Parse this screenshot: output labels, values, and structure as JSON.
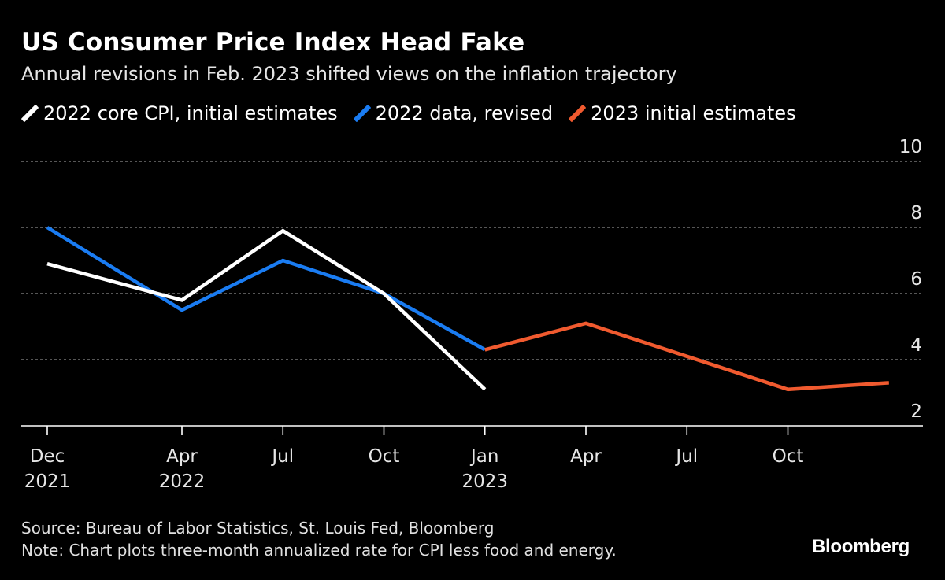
{
  "title": "US Consumer Price Index Head Fake",
  "subtitle": "Annual revisions in Feb. 2023 shifted views on the inflation trajectory",
  "legend": [
    {
      "label": "2022 core CPI, initial estimates",
      "color": "#ffffff"
    },
    {
      "label": "2022 data, revised",
      "color": "#1a7cf2"
    },
    {
      "label": "2023 initial estimates",
      "color": "#f05a2f"
    }
  ],
  "chart_data": {
    "type": "line",
    "title": "US Consumer Price Index Head Fake",
    "xlabel": "",
    "ylabel": "",
    "ylim": [
      2,
      10
    ],
    "yticks": [
      10,
      8,
      6,
      4,
      2
    ],
    "grid": true,
    "x_ticks": [
      {
        "t": 0,
        "line1": "Dec",
        "line2": "2021"
      },
      {
        "t": 4,
        "line1": "Apr",
        "line2": "2022"
      },
      {
        "t": 7,
        "line1": "Jul",
        "line2": ""
      },
      {
        "t": 10,
        "line1": "Oct",
        "line2": ""
      },
      {
        "t": 13,
        "line1": "Jan",
        "line2": "2023"
      },
      {
        "t": 16,
        "line1": "Apr",
        "line2": ""
      },
      {
        "t": 19,
        "line1": "Jul",
        "line2": ""
      },
      {
        "t": 22,
        "line1": "Oct",
        "line2": ""
      }
    ],
    "x_units": "months since Dec 2021",
    "series": [
      {
        "name": "2022 core CPI, initial estimates",
        "color": "#ffffff",
        "points": [
          [
            0,
            6.9
          ],
          [
            4,
            5.8
          ],
          [
            7,
            7.9
          ],
          [
            10,
            6.0
          ],
          [
            13,
            3.1
          ]
        ]
      },
      {
        "name": "2022 data, revised",
        "color": "#1a7cf2",
        "points": [
          [
            0,
            8.0
          ],
          [
            4,
            5.5
          ],
          [
            7,
            7.0
          ],
          [
            10,
            6.0
          ],
          [
            13,
            4.3
          ]
        ]
      },
      {
        "name": "2023 initial estimates",
        "color": "#f05a2f",
        "points": [
          [
            13,
            4.3
          ],
          [
            16,
            5.1
          ],
          [
            19,
            4.1
          ],
          [
            22,
            3.1
          ],
          [
            25,
            3.3
          ]
        ]
      }
    ]
  },
  "footer": {
    "source": "Source: Bureau of Labor Statistics, St. Louis Fed, Bloomberg",
    "note": "Note: Chart plots three-month annualized rate for CPI less food and energy."
  },
  "brand": "Bloomberg"
}
